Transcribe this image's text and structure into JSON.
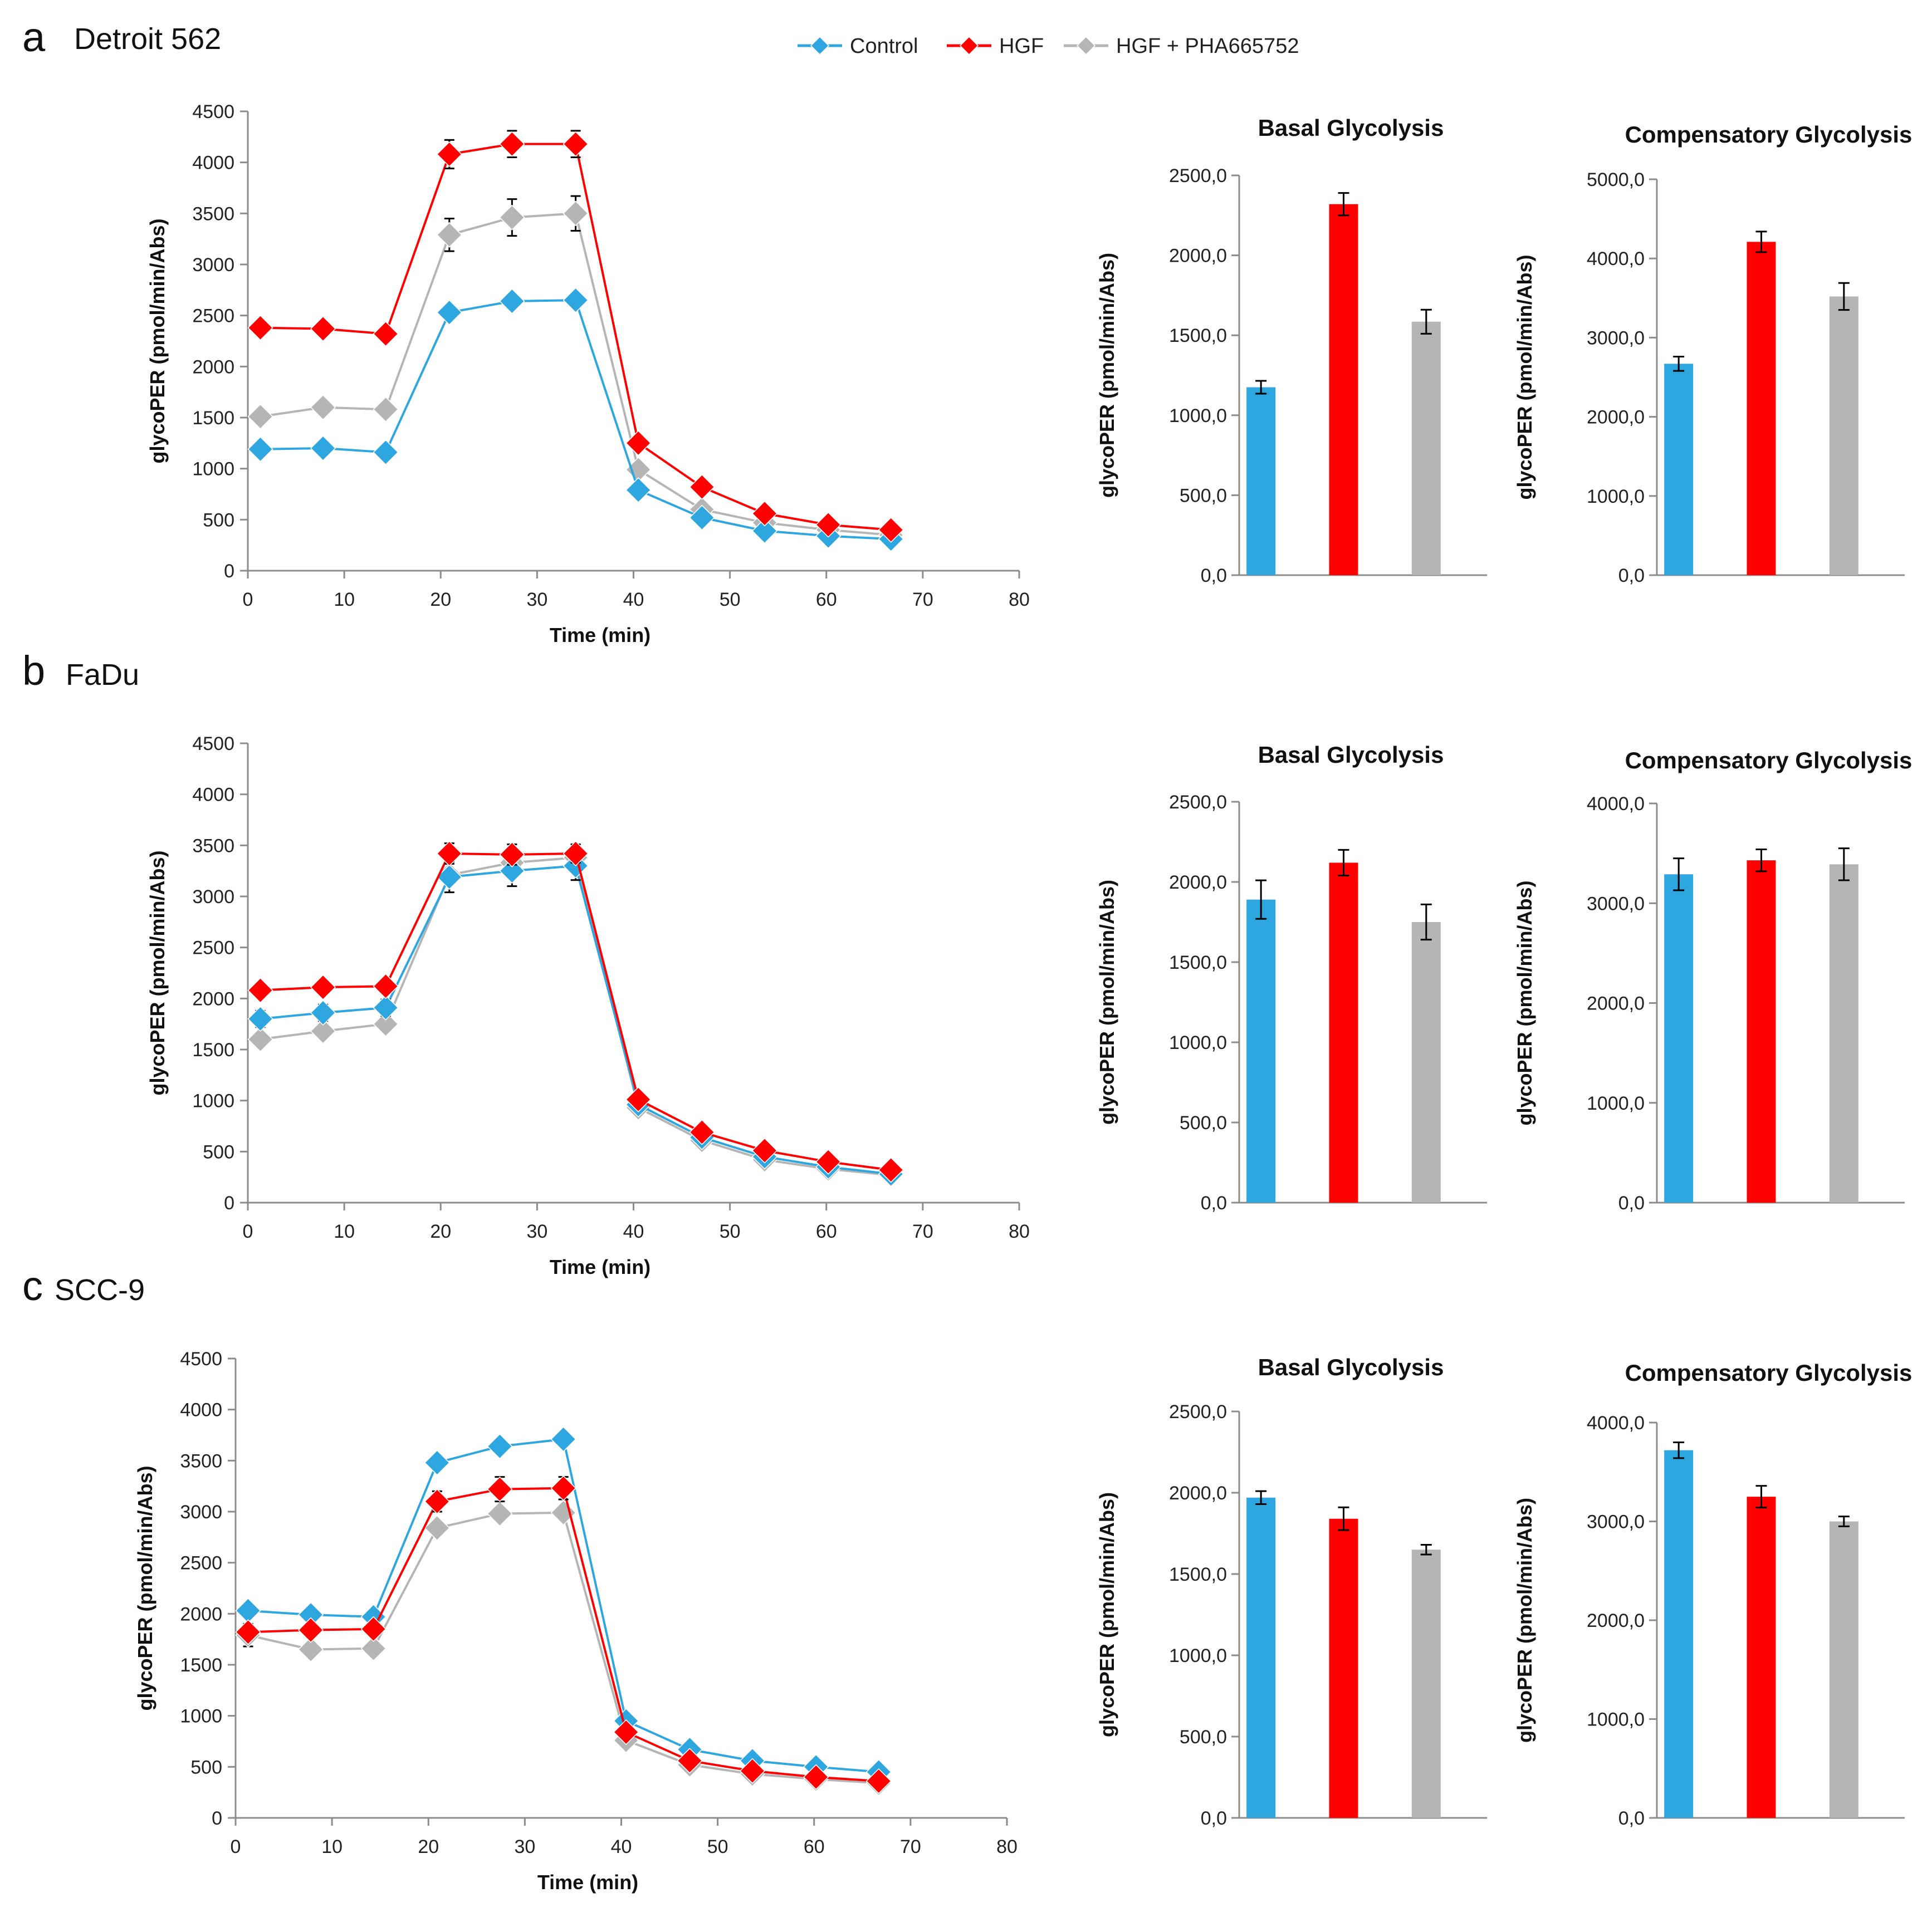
{
  "colors": {
    "control": "#2ea6e0",
    "hgf": "#ff0000",
    "hgf_pha": "#b5b5b5",
    "axis": "#8c8c8c",
    "text": "#222222"
  },
  "legend": [
    {
      "key": "control",
      "label": "Control"
    },
    {
      "key": "hgf",
      "label": "HGF"
    },
    {
      "key": "hgf_pha",
      "label": "HGF + PHA665752"
    }
  ],
  "chart_data": [
    {
      "panel_letter": "a",
      "cell_line": "Detroit 562",
      "line_chart": {
        "type": "line",
        "xlabel": "Time (min)",
        "ylabel": "glycoPER (pmol/min/Abs)",
        "xlim": [
          0,
          80
        ],
        "ylim": [
          0,
          4500
        ],
        "x_ticks": [
          "0",
          "10",
          "20",
          "30",
          "40",
          "50",
          "60",
          "70",
          "80"
        ],
        "y_ticks": [
          "0",
          "500",
          "1000",
          "1500",
          "2000",
          "2500",
          "3000",
          "3500",
          "4000",
          "4500"
        ],
        "x": [
          1.3,
          7.8,
          14.3,
          20.9,
          27.4,
          34.0,
          40.5,
          47.1,
          53.6,
          60.2,
          66.7
        ],
        "series": [
          {
            "name": "Control",
            "key": "control",
            "values": [
              1190,
              1200,
              1160,
              2530,
              2640,
              2650,
              790,
              520,
              390,
              340,
              310
            ],
            "errors": [
              0,
              0,
              0,
              60,
              60,
              70,
              40,
              30,
              20,
              20,
              20
            ]
          },
          {
            "name": "HGF",
            "key": "hgf",
            "values": [
              2380,
              2370,
              2320,
              4080,
              4180,
              4180,
              1250,
              820,
              560,
              450,
              400
            ],
            "errors": [
              0,
              0,
              0,
              140,
              130,
              130,
              0,
              0,
              0,
              0,
              0
            ]
          },
          {
            "name": "HGF + PHA665752",
            "key": "hgf_pha",
            "values": [
              1510,
              1600,
              1580,
              3290,
              3460,
              3500,
              990,
              600,
              470,
              400,
              350
            ],
            "errors": [
              0,
              0,
              0,
              160,
              180,
              170,
              0,
              0,
              0,
              0,
              0
            ]
          }
        ]
      },
      "bar_charts": [
        {
          "type": "bar",
          "title": "Basal Glycolysis",
          "ylabel": "glycoPER (pmol/min/Abs)",
          "ylim": [
            0,
            2500
          ],
          "y_ticks": [
            "0,0",
            "500,0",
            "1000,0",
            "1500,0",
            "2000,0",
            "2500,0"
          ],
          "categories": [
            "Control",
            "HGF",
            "HGF + PHA665752"
          ],
          "values": [
            1175,
            2320,
            1585
          ],
          "errors": [
            40,
            70,
            75
          ]
        },
        {
          "type": "bar",
          "title": "Compensatory Glycolysis",
          "ylabel": "glycoPER (pmol/min/Abs)",
          "ylim": [
            0,
            5000
          ],
          "y_ticks": [
            "0,0",
            "1000,0",
            "2000,0",
            "3000,0",
            "4000,0",
            "5000,0"
          ],
          "categories": [
            "Control",
            "HGF",
            "HGF + PHA665752"
          ],
          "values": [
            2670,
            4210,
            3520
          ],
          "errors": [
            90,
            130,
            170
          ]
        }
      ]
    },
    {
      "panel_letter": "b",
      "cell_line": "FaDu",
      "line_chart": {
        "type": "line",
        "xlabel": "Time (min)",
        "ylabel": "glycoPER (pmol/min/Abs)",
        "xlim": [
          0,
          80
        ],
        "ylim": [
          0,
          4500
        ],
        "x_ticks": [
          "0",
          "10",
          "20",
          "30",
          "40",
          "50",
          "60",
          "70",
          "80"
        ],
        "y_ticks": [
          "0",
          "500",
          "1000",
          "1500",
          "2000",
          "2500",
          "3000",
          "3500",
          "4000",
          "4500"
        ],
        "x": [
          1.3,
          7.8,
          14.3,
          20.9,
          27.4,
          34.0,
          40.5,
          47.1,
          53.6,
          60.2,
          66.7
        ],
        "series": [
          {
            "name": "Control",
            "key": "control",
            "values": [
              1800,
              1860,
              1910,
              3190,
              3250,
              3300,
              960,
              640,
              450,
              350,
              280
            ],
            "errors": [
              80,
              80,
              80,
              150,
              150,
              140,
              40,
              30,
              20,
              20,
              20
            ]
          },
          {
            "name": "HGF",
            "key": "hgf",
            "values": [
              2080,
              2110,
              2120,
              3420,
              3410,
              3420,
              1010,
              690,
              510,
              400,
              320
            ],
            "errors": [
              0,
              0,
              0,
              100,
              100,
              90,
              0,
              0,
              0,
              0,
              0
            ]
          },
          {
            "name": "HGF + PHA665752",
            "key": "hgf_pha",
            "values": [
              1600,
              1680,
              1750,
              3210,
              3330,
              3380,
              930,
              610,
              420,
              330,
              270
            ],
            "errors": [
              0,
              0,
              0,
              0,
              0,
              0,
              0,
              0,
              0,
              0,
              0
            ]
          }
        ]
      },
      "bar_charts": [
        {
          "type": "bar",
          "title": "Basal Glycolysis",
          "ylabel": "glycoPER (pmol/min/Abs)",
          "ylim": [
            0,
            2500
          ],
          "y_ticks": [
            "0,0",
            "500,0",
            "1000,0",
            "1500,0",
            "2000,0",
            "2500,0"
          ],
          "categories": [
            "Control",
            "HGF",
            "HGF + PHA665752"
          ],
          "values": [
            1890,
            2120,
            1750
          ],
          "errors": [
            120,
            80,
            110
          ]
        },
        {
          "type": "bar",
          "title": "Compensatory Glycolysis",
          "ylabel": "glycoPER (pmol/min/Abs)",
          "ylim": [
            0,
            4000
          ],
          "y_ticks": [
            "0,0",
            "1000,0",
            "2000,0",
            "3000,0",
            "4000,0"
          ],
          "categories": [
            "Control",
            "HGF",
            "HGF + PHA665752"
          ],
          "values": [
            3290,
            3430,
            3390
          ],
          "errors": [
            160,
            110,
            160
          ]
        }
      ]
    },
    {
      "panel_letter": "c",
      "cell_line": "SCC-9",
      "line_chart": {
        "type": "line",
        "xlabel": "Time (min)",
        "ylabel": "glycoPER (pmol/min/Abs)",
        "xlim": [
          0,
          80
        ],
        "ylim": [
          0,
          4500
        ],
        "x_ticks": [
          "0",
          "10",
          "20",
          "30",
          "40",
          "50",
          "60",
          "70",
          "80"
        ],
        "y_ticks": [
          "0",
          "500",
          "1000",
          "1500",
          "2000",
          "2500",
          "3000",
          "3500",
          "4000",
          "4500"
        ],
        "x": [
          1.3,
          7.8,
          14.3,
          20.9,
          27.4,
          34.0,
          40.5,
          47.1,
          53.6,
          60.2,
          66.7
        ],
        "series": [
          {
            "name": "Control",
            "key": "control",
            "values": [
              2030,
              1990,
              1970,
              3480,
              3640,
              3710,
              950,
              670,
              560,
              500,
              450
            ],
            "errors": [
              0,
              0,
              0,
              0,
              0,
              60,
              0,
              0,
              0,
              0,
              0
            ]
          },
          {
            "name": "HGF",
            "key": "hgf",
            "values": [
              1820,
              1840,
              1850,
              3100,
              3220,
              3230,
              840,
              560,
              460,
              400,
              360
            ],
            "errors": [
              0,
              0,
              0,
              100,
              120,
              110,
              0,
              0,
              0,
              0,
              0
            ]
          },
          {
            "name": "HGF + PHA665752",
            "key": "hgf_pha",
            "values": [
              1790,
              1650,
              1660,
              2840,
              2980,
              2990,
              760,
              520,
              430,
              380,
              340
            ],
            "errors": [
              110,
              0,
              0,
              0,
              0,
              0,
              0,
              0,
              0,
              0,
              0
            ]
          }
        ]
      },
      "bar_charts": [
        {
          "type": "bar",
          "title": "Basal Glycolysis",
          "ylabel": "glycoPER (pmol/min/Abs)",
          "ylim": [
            0,
            2500
          ],
          "y_ticks": [
            "0,0",
            "500,0",
            "1000,0",
            "1500,0",
            "2000,0",
            "2500,0"
          ],
          "categories": [
            "Control",
            "HGF",
            "HGF + PHA665752"
          ],
          "values": [
            1970,
            1840,
            1650
          ],
          "errors": [
            40,
            70,
            30
          ]
        },
        {
          "type": "bar",
          "title": "Compensatory Glycolysis",
          "ylabel": "glycoPER (pmol/min/Abs)",
          "ylim": [
            0,
            4000
          ],
          "y_ticks": [
            "0,0",
            "1000,0",
            "2000,0",
            "3000,0",
            "4000,0"
          ],
          "categories": [
            "Control",
            "HGF",
            "HGF + PHA665752"
          ],
          "values": [
            3720,
            3250,
            3000
          ],
          "errors": [
            80,
            110,
            50
          ]
        }
      ]
    }
  ]
}
